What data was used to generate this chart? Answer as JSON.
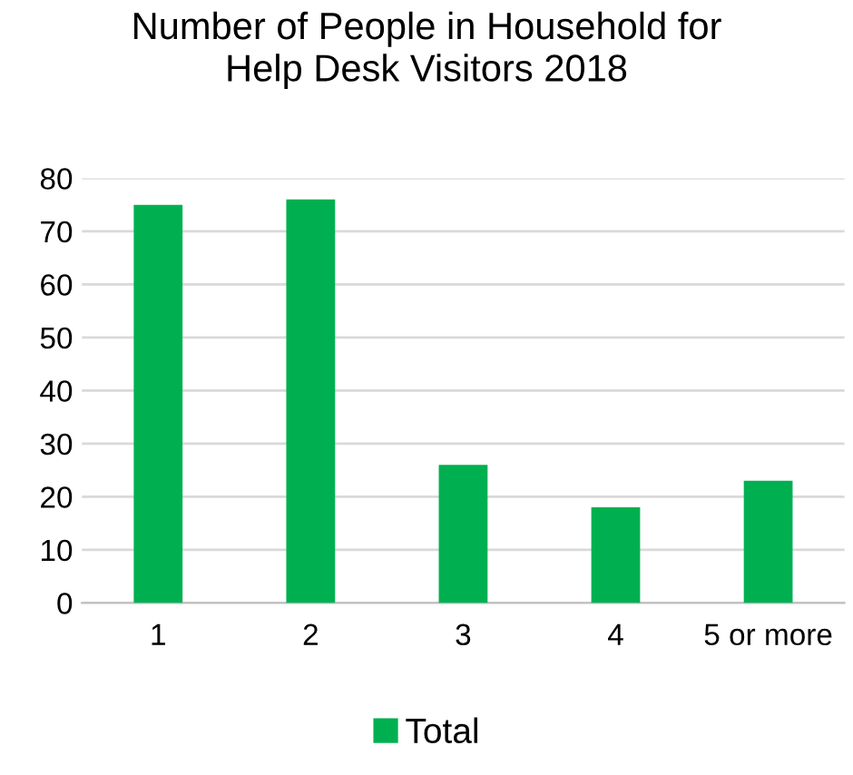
{
  "chart_data": {
    "type": "bar",
    "title": "Number of People in Household for\nHelp Desk Visitors 2018",
    "categories": [
      "1",
      "2",
      "3",
      "4",
      "5 or more"
    ],
    "series": [
      {
        "name": "Total",
        "color": "#00b050",
        "values": [
          75,
          76,
          26,
          18,
          23
        ]
      }
    ],
    "ylim": [
      0,
      80
    ],
    "yticks": [
      0,
      10,
      20,
      30,
      40,
      50,
      60,
      70,
      80
    ],
    "grid": "y",
    "legend": "bottom"
  }
}
